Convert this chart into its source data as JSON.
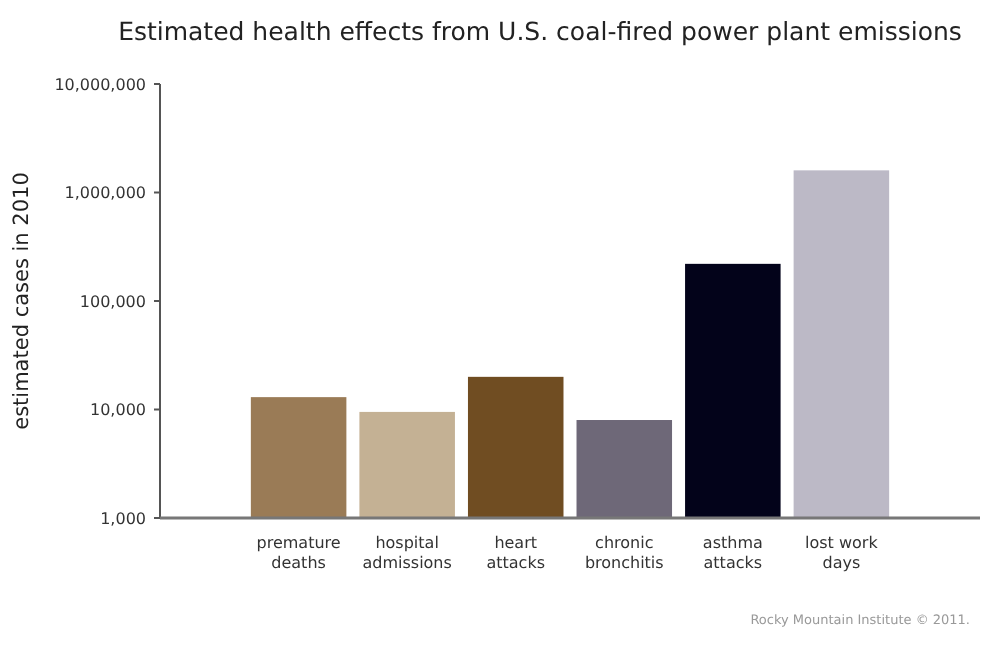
{
  "chart_data": {
    "type": "bar",
    "title": "Estimated health effects from U.S. coal-fired power plant emissions",
    "ylabel": "estimated cases in 2010",
    "categories": [
      "premature deaths",
      "hospital admissions",
      "heart attacks",
      "chronic bronchitis",
      "asthma attacks",
      "lost work days"
    ],
    "values": [
      13000,
      9500,
      20000,
      8000,
      220000,
      1600000
    ],
    "colors": [
      "#9a7b56",
      "#c4b194",
      "#704d22",
      "#6e6878",
      "#03031a",
      "#bcb9c6"
    ],
    "log": true,
    "ylim": [
      1000,
      10000000
    ],
    "yticks": [
      {
        "value": 1000,
        "label": "1,000"
      },
      {
        "value": 10000,
        "label": "10,000"
      },
      {
        "value": 100000,
        "label": "100,000"
      },
      {
        "value": 1000000,
        "label": "1,000,000"
      },
      {
        "value": 10000000,
        "label": "10,000,000"
      }
    ],
    "grid": false,
    "annotations": [
      "Rocky Mountain Institute © 2011."
    ]
  }
}
